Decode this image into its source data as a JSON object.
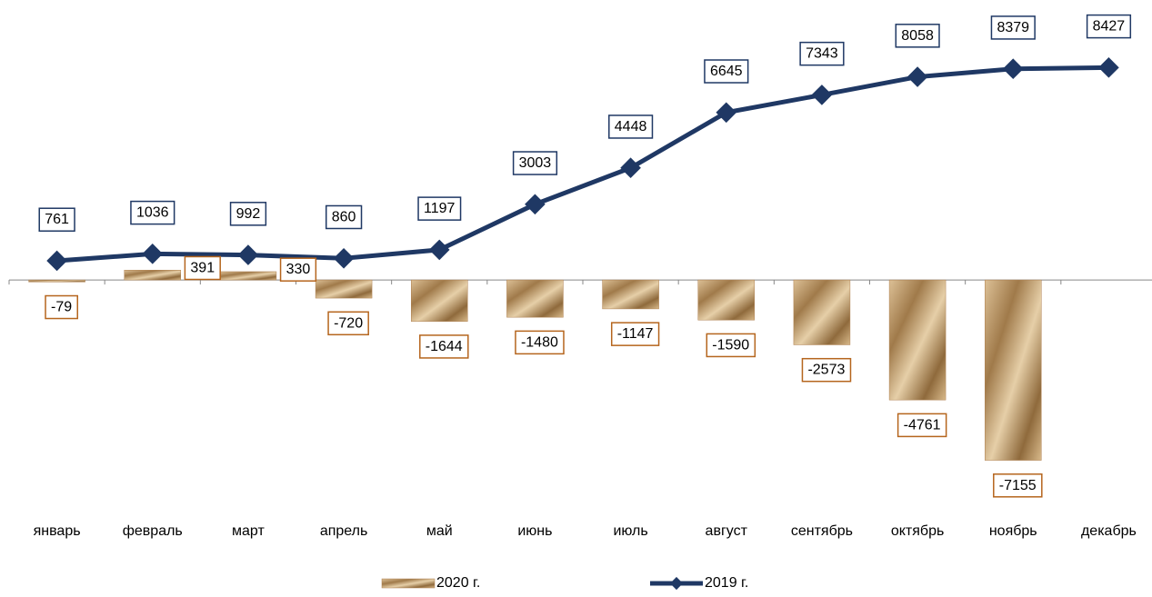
{
  "chart_data": {
    "type": "bar-line",
    "categories": [
      "январь",
      "февраль",
      "март",
      "апрель",
      "май",
      "июнь",
      "июль",
      "август",
      "сентябрь",
      "октябрь",
      "ноябрь",
      "декабрь"
    ],
    "series": [
      {
        "name": "2020 г.",
        "type": "bar",
        "color": "#c9a26b",
        "values": [
          -79,
          391,
          330,
          -720,
          -1644,
          -1480,
          -1147,
          -1590,
          -2573,
          -4761,
          -7155,
          null
        ]
      },
      {
        "name": "2019 г.",
        "type": "line",
        "color": "#1f3864",
        "values": [
          761,
          1036,
          992,
          860,
          1197,
          3003,
          4448,
          6645,
          7343,
          8058,
          8379,
          8427
        ]
      }
    ],
    "ylim": [
      -8000,
      11000
    ]
  }
}
